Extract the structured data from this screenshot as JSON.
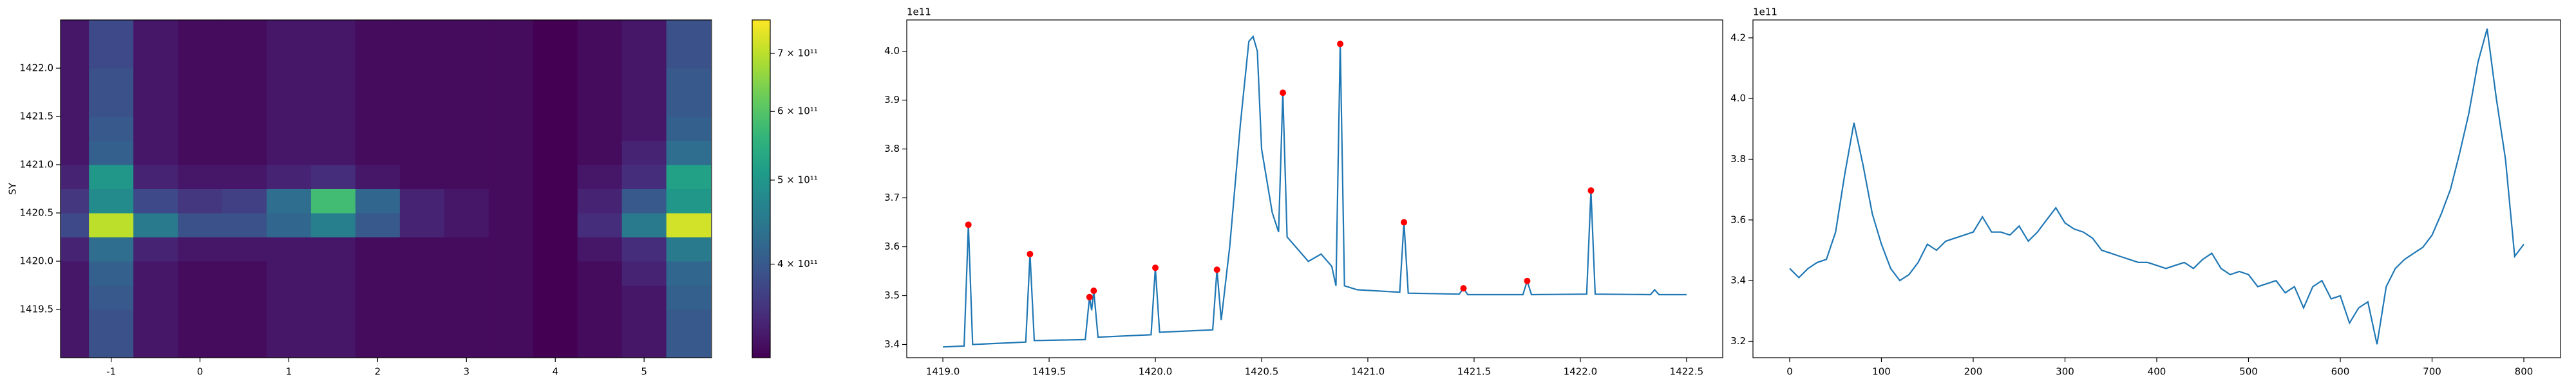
{
  "chart_data": [
    {
      "type": "heatmap",
      "y_label": "SY",
      "colormap": "viridis",
      "color_scale": "log",
      "xlim": [
        -1.57,
        5.76
      ],
      "ylim": [
        1419.0,
        1422.5
      ],
      "xticks": [
        -1,
        0,
        1,
        2,
        3,
        4,
        5
      ],
      "yticks": [
        1419.5,
        {
          "value": 1420,
          "label": "1420.0"
        },
        1420.5,
        {
          "value": 1421,
          "label": "1421.0"
        },
        1421.5,
        {
          "value": 1422,
          "label": "1422.0"
        }
      ],
      "x": [
        -1.5,
        -1,
        -0.5,
        0,
        0.5,
        1,
        1.5,
        2,
        2.5,
        3,
        3.5,
        4,
        4.5,
        5,
        5.5
      ],
      "y": [
        1419.125,
        1419.375,
        1419.625,
        1419.875,
        1420.125,
        1420.375,
        1420.625,
        1420.875,
        1421.125,
        1421.375,
        1421.625,
        1421.875,
        1422.125,
        1422.375
      ],
      "values": [
        [
          330000000000.0,
          390000000000.0,
          330000000000.0,
          320000000000.0,
          320000000000.0,
          330000000000.0,
          330000000000.0,
          320000000000.0,
          320000000000.0,
          320000000000.0,
          320000000000.0,
          300000000000.0,
          320000000000.0,
          330000000000.0,
          400000000000.0
        ],
        [
          330000000000.0,
          390000000000.0,
          330000000000.0,
          320000000000.0,
          320000000000.0,
          330000000000.0,
          330000000000.0,
          320000000000.0,
          320000000000.0,
          320000000000.0,
          320000000000.0,
          300000000000.0,
          320000000000.0,
          330000000000.0,
          400000000000.0
        ],
        [
          330000000000.0,
          400000000000.0,
          330000000000.0,
          320000000000.0,
          320000000000.0,
          330000000000.0,
          330000000000.0,
          320000000000.0,
          320000000000.0,
          320000000000.0,
          320000000000.0,
          300000000000.0,
          320000000000.0,
          330000000000.0,
          410000000000.0
        ],
        [
          330000000000.0,
          410000000000.0,
          330000000000.0,
          320000000000.0,
          320000000000.0,
          330000000000.0,
          330000000000.0,
          320000000000.0,
          320000000000.0,
          320000000000.0,
          320000000000.0,
          300000000000.0,
          320000000000.0,
          340000000000.0,
          420000000000.0
        ],
        [
          340000000000.0,
          430000000000.0,
          340000000000.0,
          330000000000.0,
          330000000000.0,
          330000000000.0,
          330000000000.0,
          320000000000.0,
          320000000000.0,
          320000000000.0,
          320000000000.0,
          300000000000.0,
          330000000000.0,
          350000000000.0,
          450000000000.0
        ],
        [
          380000000000.0,
          700000000000.0,
          450000000000.0,
          390000000000.0,
          390000000000.0,
          420000000000.0,
          460000000000.0,
          400000000000.0,
          340000000000.0,
          330000000000.0,
          320000000000.0,
          300000000000.0,
          350000000000.0,
          450000000000.0,
          720000000000.0
        ],
        [
          360000000000.0,
          480000000000.0,
          380000000000.0,
          360000000000.0,
          370000000000.0,
          430000000000.0,
          580000000000.0,
          420000000000.0,
          340000000000.0,
          330000000000.0,
          320000000000.0,
          300000000000.0,
          340000000000.0,
          400000000000.0,
          500000000000.0
        ],
        [
          340000000000.0,
          500000000000.0,
          340000000000.0,
          330000000000.0,
          330000000000.0,
          340000000000.0,
          350000000000.0,
          330000000000.0,
          320000000000.0,
          320000000000.0,
          320000000000.0,
          300000000000.0,
          330000000000.0,
          350000000000.0,
          520000000000.0
        ],
        [
          330000000000.0,
          410000000000.0,
          330000000000.0,
          320000000000.0,
          320000000000.0,
          330000000000.0,
          330000000000.0,
          320000000000.0,
          320000000000.0,
          320000000000.0,
          320000000000.0,
          300000000000.0,
          320000000000.0,
          340000000000.0,
          430000000000.0
        ],
        [
          330000000000.0,
          400000000000.0,
          330000000000.0,
          320000000000.0,
          320000000000.0,
          330000000000.0,
          330000000000.0,
          320000000000.0,
          320000000000.0,
          320000000000.0,
          320000000000.0,
          300000000000.0,
          320000000000.0,
          330000000000.0,
          410000000000.0
        ],
        [
          330000000000.0,
          390000000000.0,
          330000000000.0,
          320000000000.0,
          320000000000.0,
          330000000000.0,
          330000000000.0,
          320000000000.0,
          320000000000.0,
          320000000000.0,
          320000000000.0,
          300000000000.0,
          320000000000.0,
          330000000000.0,
          400000000000.0
        ],
        [
          330000000000.0,
          390000000000.0,
          330000000000.0,
          320000000000.0,
          320000000000.0,
          330000000000.0,
          330000000000.0,
          320000000000.0,
          320000000000.0,
          320000000000.0,
          320000000000.0,
          300000000000.0,
          320000000000.0,
          330000000000.0,
          400000000000.0
        ],
        [
          330000000000.0,
          380000000000.0,
          330000000000.0,
          320000000000.0,
          320000000000.0,
          330000000000.0,
          330000000000.0,
          320000000000.0,
          320000000000.0,
          320000000000.0,
          320000000000.0,
          300000000000.0,
          320000000000.0,
          330000000000.0,
          390000000000.0
        ],
        [
          330000000000.0,
          380000000000.0,
          330000000000.0,
          320000000000.0,
          320000000000.0,
          330000000000.0,
          330000000000.0,
          320000000000.0,
          320000000000.0,
          320000000000.0,
          320000000000.0,
          300000000000.0,
          320000000000.0,
          330000000000.0,
          390000000000.0
        ]
      ],
      "clim": [
        312000000000.0,
        765000000000.0
      ],
      "cbar_ticks": [
        {
          "value": 400000000000.0,
          "label": "4 × 10¹¹"
        },
        {
          "value": 500000000000.0,
          "label": "5 × 10¹¹"
        },
        {
          "value": 600000000000.0,
          "label": "6 × 10¹¹"
        },
        {
          "value": 700000000000.0,
          "label": "7 × 10¹¹"
        }
      ]
    },
    {
      "type": "line",
      "offset_label": "1e11",
      "xlim": [
        1418.83,
        1422.67
      ],
      "ylim": [
        3.373,
        4.064
      ],
      "xticks": [
        {
          "value": 1419,
          "label": "1419.0"
        },
        1419.5,
        {
          "value": 1420,
          "label": "1420.0"
        },
        1420.5,
        {
          "value": 1421,
          "label": "1421.0"
        },
        1421.5,
        {
          "value": 1422,
          "label": "1422.0"
        },
        1422.5
      ],
      "yticks": [
        3.4,
        3.5,
        3.6,
        3.7,
        3.8,
        3.9,
        {
          "value": 4,
          "label": "4.0"
        }
      ],
      "series": [
        {
          "color": "#1f77b4",
          "mode": "line",
          "x": [
            1419.0,
            1419.1,
            1419.12,
            1419.14,
            1419.39,
            1419.41,
            1419.43,
            1419.67,
            1419.69,
            1419.7,
            1419.71,
            1419.73,
            1419.98,
            1420.0,
            1420.02,
            1420.27,
            1420.29,
            1420.31,
            1420.35,
            1420.4,
            1420.44,
            1420.46,
            1420.48,
            1420.5,
            1420.55,
            1420.58,
            1420.6,
            1420.62,
            1420.66,
            1420.72,
            1420.78,
            1420.83,
            1420.85,
            1420.87,
            1420.89,
            1420.95,
            1421.15,
            1421.17,
            1421.19,
            1421.43,
            1421.45,
            1421.47,
            1421.73,
            1421.75,
            1421.77,
            1422.03,
            1422.05,
            1422.07,
            1422.33,
            1422.35,
            1422.37,
            1422.5
          ],
          "values": [
            3.395,
            3.397,
            3.645,
            3.4,
            3.405,
            3.585,
            3.408,
            3.41,
            3.497,
            3.47,
            3.51,
            3.415,
            3.42,
            3.557,
            3.425,
            3.43,
            3.553,
            3.45,
            3.6,
            3.85,
            4.02,
            4.03,
            4.0,
            3.8,
            3.67,
            3.63,
            3.915,
            3.62,
            3.6,
            3.57,
            3.585,
            3.56,
            3.52,
            4.015,
            3.52,
            3.512,
            3.507,
            3.65,
            3.505,
            3.503,
            3.515,
            3.502,
            3.502,
            3.53,
            3.502,
            3.503,
            3.715,
            3.503,
            3.502,
            3.512,
            3.502,
            3.502
          ]
        },
        {
          "color": "#ff0000",
          "mode": "markers",
          "x": [
            1419.12,
            1419.41,
            1419.69,
            1419.71,
            1420.0,
            1420.29,
            1420.6,
            1420.87,
            1421.17,
            1421.45,
            1421.75,
            1422.05
          ],
          "values": [
            3.645,
            3.585,
            3.497,
            3.51,
            3.557,
            3.553,
            3.915,
            4.015,
            3.65,
            3.515,
            3.53,
            3.715
          ]
        }
      ]
    },
    {
      "type": "line",
      "offset_label": "1e11",
      "xlim": [
        -40,
        840
      ],
      "ylim": [
        3.146,
        4.259
      ],
      "xticks": [
        0,
        100,
        200,
        300,
        400,
        500,
        600,
        700,
        800
      ],
      "yticks": [
        3.2,
        3.4,
        3.6,
        3.8,
        {
          "value": 4,
          "label": "4.0"
        },
        4.2
      ],
      "series": [
        {
          "color": "#1f77b4",
          "mode": "line",
          "x": [
            0,
            10,
            20,
            30,
            40,
            50,
            60,
            70,
            80,
            90,
            100,
            110,
            120,
            130,
            140,
            150,
            160,
            170,
            180,
            190,
            200,
            210,
            220,
            230,
            240,
            250,
            260,
            270,
            280,
            290,
            300,
            310,
            320,
            330,
            340,
            350,
            360,
            370,
            380,
            390,
            400,
            410,
            420,
            430,
            440,
            450,
            460,
            470,
            480,
            490,
            500,
            510,
            520,
            530,
            540,
            550,
            560,
            570,
            580,
            590,
            600,
            610,
            620,
            630,
            640,
            650,
            660,
            670,
            680,
            690,
            700,
            710,
            720,
            730,
            740,
            750,
            760,
            770,
            780,
            790,
            800
          ],
          "values": [
            3.44,
            3.41,
            3.44,
            3.46,
            3.47,
            3.56,
            3.75,
            3.92,
            3.78,
            3.62,
            3.52,
            3.44,
            3.4,
            3.42,
            3.46,
            3.52,
            3.5,
            3.53,
            3.54,
            3.55,
            3.56,
            3.61,
            3.56,
            3.56,
            3.55,
            3.58,
            3.53,
            3.56,
            3.6,
            3.64,
            3.59,
            3.57,
            3.56,
            3.54,
            3.5,
            3.49,
            3.48,
            3.47,
            3.46,
            3.46,
            3.45,
            3.44,
            3.45,
            3.46,
            3.44,
            3.47,
            3.49,
            3.44,
            3.42,
            3.43,
            3.42,
            3.38,
            3.39,
            3.4,
            3.36,
            3.38,
            3.31,
            3.38,
            3.4,
            3.34,
            3.35,
            3.26,
            3.31,
            3.33,
            3.19,
            3.38,
            3.44,
            3.47,
            3.49,
            3.51,
            3.55,
            3.62,
            3.7,
            3.82,
            3.95,
            4.12,
            4.23,
            4.0,
            3.8,
            3.48,
            3.52
          ]
        }
      ]
    }
  ]
}
